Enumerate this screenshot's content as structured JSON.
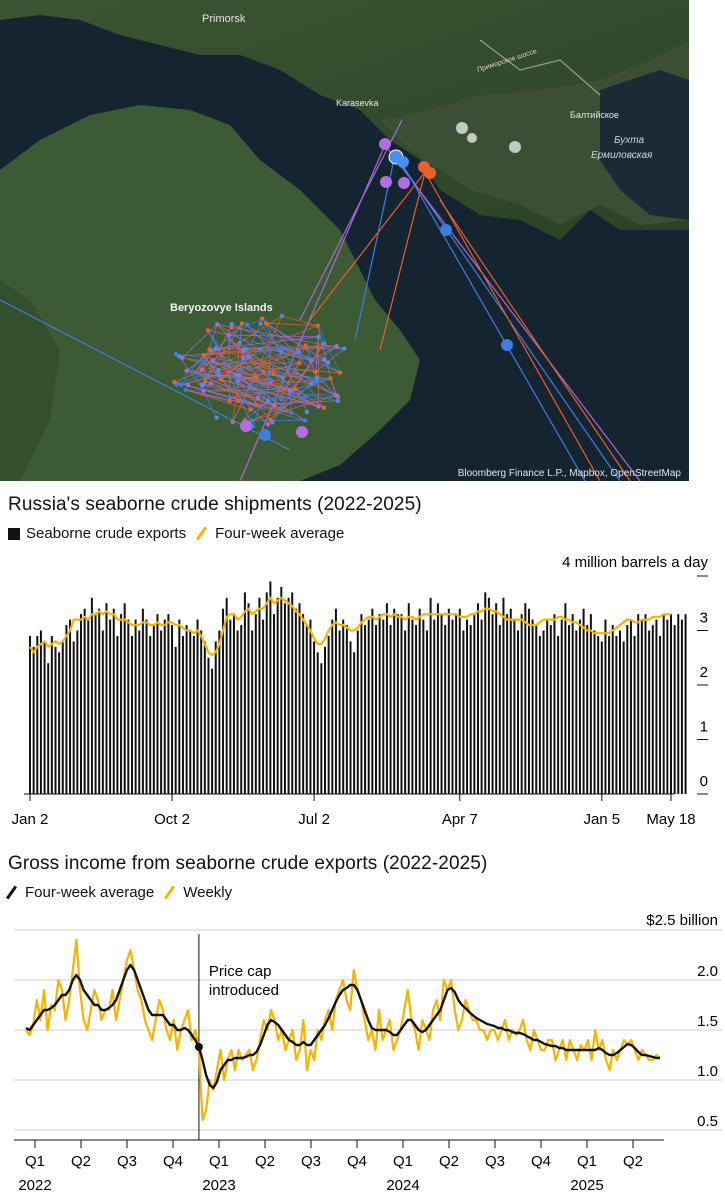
{
  "map": {
    "place_labels": [
      "Primorsk",
      "Karasevka",
      "Beryozovye Islands",
      "Балтийское",
      "Бухта",
      "Ермиловская",
      "Приморское шоссе"
    ],
    "attribution": "Bloomberg Finance L.P., Mapbox, OpenStreetMap",
    "colors": {
      "water": "#101d26",
      "land": "#2f4a2a",
      "blue_route": "#3d7ee0",
      "orange_route": "#e8602c",
      "purple_route": "#a86ad8"
    }
  },
  "chart_data": [
    {
      "type": "bar",
      "title": "Russia's seaborne crude shipments (2022-2025)",
      "legend": [
        "Seaborne crude exports",
        "Four-week average"
      ],
      "unit_label": "4 million barrels a day",
      "ytick_labels": [
        "3",
        "2",
        "1",
        "0"
      ],
      "yticks": [
        4,
        3,
        2,
        1,
        0
      ],
      "ylim": [
        0,
        4
      ],
      "xtick_labels": [
        "Jan 2",
        "Oct 2",
        "Jul 2",
        "Apr 7",
        "Jan 5",
        "May 18"
      ],
      "xtick_weeks": [
        0,
        39,
        78,
        118,
        157,
        176
      ],
      "n_weeks": 177,
      "series": [
        {
          "name": "Seaborne crude exports",
          "values": [
            2.9,
            2.7,
            2.9,
            3.0,
            2.8,
            2.4,
            2.9,
            2.7,
            2.6,
            2.8,
            3.1,
            3.2,
            2.8,
            3.0,
            3.3,
            3.4,
            3.2,
            3.6,
            3.3,
            3.4,
            3.0,
            3.5,
            3.2,
            3.4,
            2.9,
            3.3,
            3.5,
            3.2,
            2.9,
            3.2,
            3.0,
            3.4,
            3.2,
            2.9,
            3.1,
            3.3,
            3.0,
            3.2,
            3.3,
            3.1,
            2.7,
            3.2,
            2.9,
            3.1,
            3.0,
            2.9,
            3.2,
            3.0,
            2.8,
            2.5,
            2.3,
            2.8,
            3.0,
            3.4,
            3.6,
            3.2,
            3.3,
            3.0,
            3.1,
            3.7,
            3.5,
            3.0,
            3.3,
            3.6,
            3.2,
            3.7,
            3.9,
            3.3,
            3.6,
            3.8,
            3.5,
            3.6,
            3.7,
            3.4,
            3.5,
            3.3,
            3.1,
            3.2,
            2.8,
            2.6,
            2.4,
            2.7,
            2.9,
            3.2,
            3.4,
            3.0,
            3.2,
            3.1,
            2.8,
            2.6,
            3.0,
            3.3,
            3.1,
            3.2,
            3.4,
            3.1,
            3.3,
            3.2,
            3.5,
            3.1,
            3.4,
            3.3,
            3.3,
            3.0,
            3.5,
            3.2,
            3.1,
            3.4,
            3.2,
            3.0,
            3.6,
            3.2,
            3.5,
            3.3,
            3.1,
            3.4,
            3.2,
            3.3,
            3.4,
            3.0,
            3.2,
            3.1,
            3.3,
            3.5,
            3.2,
            3.7,
            3.6,
            3.3,
            3.5,
            3.1,
            3.6,
            3.3,
            3.4,
            3.2,
            3.0,
            3.3,
            3.5,
            3.4,
            3.2,
            3.1,
            2.9,
            3.0,
            3.2,
            3.1,
            3.3,
            2.9,
            3.2,
            3.5,
            3.1,
            3.3,
            3.0,
            3.2,
            3.4,
            3.1,
            3.3,
            3.0,
            2.9,
            2.8,
            3.2,
            2.9,
            3.1,
            2.9,
            3.0,
            2.8,
            3.1,
            3.2,
            2.9,
            3.3,
            3.2,
            3.3,
            3.0,
            3.1,
            3.2,
            2.9,
            3.3,
            3.2,
            3.3,
            3.1,
            3.3,
            3.2,
            3.3
          ]
        },
        {
          "name": "Four-week average",
          "values": [
            2.7,
            2.6,
            2.7,
            2.75,
            2.8,
            2.7,
            2.75,
            2.8,
            2.75,
            2.8,
            2.9,
            3.0,
            3.2,
            3.2,
            3.2,
            3.25,
            3.2,
            3.3,
            3.3,
            3.35,
            3.3,
            3.35,
            3.3,
            3.3,
            3.2,
            3.2,
            3.2,
            3.15,
            3.1,
            3.1,
            3.1,
            3.15,
            3.15,
            3.1,
            3.1,
            3.15,
            3.1,
            3.1,
            3.15,
            3.15,
            3.1,
            3.1,
            3.05,
            3.0,
            3.0,
            2.95,
            3.0,
            2.9,
            2.75,
            2.6,
            2.55,
            2.6,
            2.75,
            3.0,
            3.25,
            3.3,
            3.3,
            3.2,
            3.25,
            3.35,
            3.4,
            3.3,
            3.35,
            3.4,
            3.4,
            3.5,
            3.6,
            3.5,
            3.55,
            3.6,
            3.55,
            3.5,
            3.45,
            3.35,
            3.3,
            3.2,
            3.1,
            3.0,
            2.85,
            2.75,
            2.75,
            2.85,
            3.0,
            3.1,
            3.15,
            3.1,
            3.1,
            3.05,
            3.0,
            3.0,
            3.05,
            3.15,
            3.2,
            3.25,
            3.25,
            3.2,
            3.25,
            3.3,
            3.3,
            3.25,
            3.3,
            3.25,
            3.25,
            3.2,
            3.25,
            3.25,
            3.2,
            3.25,
            3.3,
            3.3,
            3.3,
            3.3,
            3.3,
            3.3,
            3.3,
            3.3,
            3.3,
            3.3,
            3.25,
            3.25,
            3.25,
            3.3,
            3.3,
            3.35,
            3.35,
            3.4,
            3.4,
            3.35,
            3.35,
            3.3,
            3.25,
            3.2,
            3.2,
            3.2,
            3.2,
            3.2,
            3.15,
            3.1,
            3.1,
            3.1,
            3.15,
            3.2,
            3.2,
            3.2,
            3.2,
            3.25,
            3.25,
            3.2,
            3.2,
            3.15,
            3.15,
            3.1,
            3.05,
            3.0,
            3.0,
            2.95,
            2.95,
            2.95,
            2.95,
            2.95,
            3.0,
            3.05,
            3.1,
            3.15,
            3.2,
            3.2,
            3.15,
            3.15,
            3.2,
            3.2,
            3.2,
            3.25,
            3.25,
            3.25,
            3.3,
            3.3,
            3.3
          ]
        }
      ]
    },
    {
      "type": "line",
      "title": "Gross income from seaborne crude exports (2022-2025)",
      "legend": [
        "Four-week average",
        "Weekly"
      ],
      "unit_label": "$2.5 billion",
      "ytick_labels": [
        "2.0",
        "1.5",
        "1.0",
        "0.5"
      ],
      "yticks": [
        2.5,
        2.0,
        1.5,
        1.0,
        0.5
      ],
      "ylim": [
        0.4,
        2.5
      ],
      "annotation": {
        "text_line1": "Price cap",
        "text_line2": "introduced",
        "week": 48
      },
      "quarter_labels": [
        "Q1",
        "Q2",
        "Q3",
        "Q4",
        "Q1",
        "Q2",
        "Q3",
        "Q4",
        "Q1",
        "Q2",
        "Q3",
        "Q4",
        "Q1",
        "Q2"
      ],
      "year_labels": [
        "2022",
        "2023",
        "2024",
        "2025"
      ],
      "year_label_quarters": [
        0,
        4,
        8,
        12
      ],
      "n_weeks": 177,
      "series": [
        {
          "name": "Weekly",
          "values": [
            1.5,
            1.45,
            1.55,
            1.8,
            1.6,
            1.9,
            1.5,
            1.75,
            1.7,
            2.0,
            1.9,
            1.6,
            1.8,
            2.1,
            2.4,
            1.9,
            1.6,
            1.5,
            1.7,
            1.9,
            1.8,
            1.6,
            1.7,
            1.7,
            1.9,
            1.6,
            1.8,
            2.0,
            2.2,
            2.3,
            2.1,
            1.9,
            1.8,
            1.6,
            1.5,
            1.4,
            1.6,
            1.8,
            1.7,
            1.5,
            1.4,
            1.6,
            1.3,
            1.5,
            1.6,
            1.7,
            1.4,
            1.5,
            1.3,
            0.6,
            0.7,
            1.0,
            0.9,
            1.1,
            1.3,
            1.0,
            1.2,
            1.3,
            1.1,
            1.3,
            1.2,
            1.25,
            1.3,
            1.1,
            1.2,
            1.4,
            1.6,
            1.5,
            1.7,
            1.6,
            1.4,
            1.5,
            1.3,
            1.4,
            1.5,
            1.2,
            1.3,
            1.6,
            1.1,
            1.3,
            1.2,
            1.5,
            1.4,
            1.6,
            1.7,
            1.5,
            1.8,
            1.9,
            2.0,
            1.8,
            1.7,
            2.1,
            1.9,
            1.8,
            1.6,
            1.4,
            1.5,
            1.3,
            1.7,
            1.4,
            1.5,
            1.6,
            1.3,
            1.4,
            1.5,
            1.7,
            1.9,
            1.6,
            1.5,
            1.3,
            1.6,
            1.5,
            1.4,
            1.7,
            1.8,
            1.6,
            2.0,
            1.9,
            2.0,
            1.7,
            1.5,
            1.6,
            1.8,
            1.7,
            1.6,
            1.6,
            1.5,
            1.5,
            1.4,
            1.5,
            1.5,
            1.4,
            1.5,
            1.6,
            1.4,
            1.5,
            1.45,
            1.5,
            1.6,
            1.4,
            1.3,
            1.5,
            1.4,
            1.3,
            1.3,
            1.4,
            1.4,
            1.2,
            1.3,
            1.4,
            1.2,
            1.4,
            1.3,
            1.2,
            1.35,
            1.3,
            1.4,
            1.2,
            1.5,
            1.3,
            1.4,
            1.2,
            1.1,
            1.3,
            1.2,
            1.3,
            1.4,
            1.35,
            1.4,
            1.3,
            1.2,
            1.3,
            1.25,
            1.2,
            1.2,
            1.25,
            1.22
          ]
        },
        {
          "name": "Four-week average",
          "values": [
            1.52,
            1.5,
            1.55,
            1.6,
            1.65,
            1.7,
            1.7,
            1.72,
            1.75,
            1.8,
            1.85,
            1.85,
            1.9,
            2.0,
            2.05,
            2.0,
            1.9,
            1.85,
            1.8,
            1.75,
            1.75,
            1.7,
            1.7,
            1.72,
            1.75,
            1.8,
            1.9,
            2.0,
            2.1,
            2.15,
            2.1,
            2.0,
            1.9,
            1.8,
            1.7,
            1.65,
            1.65,
            1.65,
            1.65,
            1.6,
            1.55,
            1.55,
            1.5,
            1.5,
            1.52,
            1.5,
            1.45,
            1.4,
            1.33,
            1.2,
            1.05,
            0.95,
            0.92,
            0.98,
            1.1,
            1.15,
            1.2,
            1.2,
            1.22,
            1.22,
            1.22,
            1.23,
            1.25,
            1.25,
            1.28,
            1.35,
            1.45,
            1.55,
            1.6,
            1.58,
            1.55,
            1.5,
            1.45,
            1.4,
            1.38,
            1.35,
            1.35,
            1.38,
            1.35,
            1.35,
            1.4,
            1.45,
            1.5,
            1.55,
            1.62,
            1.7,
            1.78,
            1.85,
            1.9,
            1.92,
            1.95,
            1.95,
            1.9,
            1.8,
            1.7,
            1.6,
            1.52,
            1.5,
            1.5,
            1.5,
            1.5,
            1.48,
            1.45,
            1.45,
            1.5,
            1.55,
            1.6,
            1.6,
            1.55,
            1.5,
            1.48,
            1.5,
            1.55,
            1.6,
            1.65,
            1.7,
            1.8,
            1.9,
            1.92,
            1.88,
            1.8,
            1.75,
            1.72,
            1.68,
            1.65,
            1.62,
            1.6,
            1.58,
            1.56,
            1.55,
            1.54,
            1.52,
            1.52,
            1.5,
            1.5,
            1.48,
            1.47,
            1.47,
            1.46,
            1.44,
            1.42,
            1.4,
            1.4,
            1.38,
            1.36,
            1.35,
            1.34,
            1.34,
            1.32,
            1.32,
            1.3,
            1.3,
            1.3,
            1.3,
            1.3,
            1.3,
            1.3,
            1.3,
            1.3,
            1.32,
            1.3,
            1.27,
            1.25,
            1.25,
            1.27,
            1.3,
            1.33,
            1.36,
            1.35,
            1.32,
            1.28,
            1.25,
            1.25,
            1.24,
            1.23,
            1.22,
            1.22
          ]
        }
      ]
    }
  ]
}
